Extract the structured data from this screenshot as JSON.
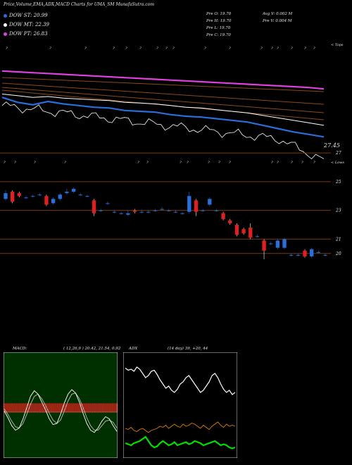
{
  "header": {
    "title": "Price,Volume,EMA,ADX,MACD Charts for UMA_SM MunafaSutra.com"
  },
  "legend": [
    {
      "label": "DOW ST: 20.99",
      "color": "#2a6edc"
    },
    {
      "label": "DOW MT: 22.39",
      "color": "#ffffff"
    },
    {
      "label": "DOW PT: 26.83",
      "color": "#e040e0"
    }
  ],
  "ohlc": {
    "open": "Pre  O: 19.70",
    "high": "Pre  H: 19.70",
    "low": "Pre  L: 19.70",
    "close": "Pre  C: 19.70",
    "avg_volume": "Avg V: 0.002  M",
    "prev_volume": "Pre  V: 0.004  M"
  },
  "colors": {
    "bull": "#2a6edc",
    "bear": "#e02020",
    "ema_short": "#2a6edc",
    "ema_mid": "#ffffff",
    "ema_long": "#e040e0",
    "brown": "#8a4a1a",
    "grid": "#7a3a10",
    "macd_hist": "#ff2020",
    "adx_white": "#ffffff",
    "adx_green": "#00e000",
    "adx_orange": "#e08000"
  },
  "chart_data": [
    {
      "type": "line",
      "name": "ema-panel",
      "ema_short_value": "20.99",
      "ema_mid_value": "22.39",
      "ema_long_value": "26.83",
      "last_price_label": "27.45",
      "right_label": "< Tops",
      "series": [
        {
          "name": "DOW PT",
          "values": [
            29.0,
            28.9,
            28.8,
            28.7,
            28.6,
            28.5,
            28.4,
            28.3,
            28.2,
            28.1,
            28.0,
            27.9,
            27.8,
            27.7,
            27.6,
            27.5,
            27.4,
            27.3,
            27.2,
            27.1,
            27.0,
            26.83
          ]
        },
        {
          "name": "DOW MT",
          "values": [
            26.2,
            26.0,
            25.8,
            25.9,
            25.7,
            25.6,
            25.5,
            25.4,
            25.2,
            25.1,
            25.0,
            24.8,
            24.6,
            24.5,
            24.3,
            24.1,
            23.9,
            23.6,
            23.3,
            23.0,
            22.7,
            22.39
          ]
        },
        {
          "name": "DOW ST",
          "values": [
            25.8,
            25.2,
            24.9,
            25.3,
            25.0,
            24.8,
            24.6,
            24.5,
            24.2,
            24.1,
            24.0,
            23.7,
            23.5,
            23.4,
            23.2,
            23.0,
            22.8,
            22.4,
            22.0,
            21.6,
            21.3,
            20.99
          ]
        }
      ]
    },
    {
      "type": "candlestick",
      "name": "price-panel",
      "right_label": "< Lows",
      "y_ticks": [
        "27",
        "25",
        "23",
        "21",
        "20"
      ],
      "ylim": [
        19.5,
        27.2
      ],
      "candles": [
        {
          "o": 23.8,
          "c": 24.2,
          "h": 24.4,
          "l": 23.7
        },
        {
          "o": 24.3,
          "c": 23.6,
          "h": 24.4,
          "l": 23.5
        },
        {
          "o": 24.2,
          "c": 24.0,
          "h": 24.3,
          "l": 23.9
        },
        {
          "o": 23.9,
          "c": 23.9,
          "h": 24.0,
          "l": 23.8
        },
        {
          "o": 24.0,
          "c": 24.0,
          "h": 24.1,
          "l": 23.9
        },
        {
          "o": 24.1,
          "c": 24.1,
          "h": 24.2,
          "l": 24.0
        },
        {
          "o": 24.0,
          "c": 23.4,
          "h": 24.1,
          "l": 23.3
        },
        {
          "o": 23.5,
          "c": 23.8,
          "h": 23.9,
          "l": 23.4
        },
        {
          "o": 23.8,
          "c": 24.1,
          "h": 24.2,
          "l": 23.7
        },
        {
          "o": 24.2,
          "c": 24.3,
          "h": 24.5,
          "l": 24.1
        },
        {
          "o": 24.3,
          "c": 24.5,
          "h": 24.6,
          "l": 24.2
        },
        {
          "o": 24.1,
          "c": 24.1,
          "h": 24.2,
          "l": 24.0
        },
        {
          "o": 24.0,
          "c": 24.0,
          "h": 24.1,
          "l": 23.9
        },
        {
          "o": 23.7,
          "c": 22.8,
          "h": 23.8,
          "l": 22.6
        },
        {
          "o": 23.0,
          "c": 23.0,
          "h": 23.1,
          "l": 22.9
        },
        {
          "o": 23.5,
          "c": 23.5,
          "h": 23.6,
          "l": 23.4
        },
        {
          "o": 22.9,
          "c": 22.9,
          "h": 23.0,
          "l": 22.8
        },
        {
          "o": 22.8,
          "c": 22.8,
          "h": 22.9,
          "l": 22.7
        },
        {
          "o": 22.7,
          "c": 22.8,
          "h": 23.0,
          "l": 22.6
        },
        {
          "o": 23.0,
          "c": 22.9,
          "h": 23.1,
          "l": 22.8
        },
        {
          "o": 22.9,
          "c": 22.9,
          "h": 23.0,
          "l": 22.8
        },
        {
          "o": 22.9,
          "c": 22.9,
          "h": 23.0,
          "l": 22.8
        },
        {
          "o": 23.0,
          "c": 23.0,
          "h": 23.1,
          "l": 22.9
        },
        {
          "o": 23.1,
          "c": 23.1,
          "h": 23.2,
          "l": 23.0
        },
        {
          "o": 23.0,
          "c": 23.0,
          "h": 23.1,
          "l": 22.9
        },
        {
          "o": 22.9,
          "c": 22.9,
          "h": 23.0,
          "l": 22.8
        },
        {
          "o": 22.8,
          "c": 22.8,
          "h": 22.9,
          "l": 22.7
        },
        {
          "o": 22.9,
          "c": 24.0,
          "h": 24.3,
          "l": 22.8
        },
        {
          "o": 23.7,
          "c": 22.9,
          "h": 23.8,
          "l": 22.6
        },
        {
          "o": 23.0,
          "c": 23.0,
          "h": 23.1,
          "l": 22.9
        },
        {
          "o": 23.4,
          "c": 23.8,
          "h": 23.9,
          "l": 23.3
        },
        {
          "o": 23.0,
          "c": 23.0,
          "h": 23.1,
          "l": 22.9
        },
        {
          "o": 22.8,
          "c": 22.4,
          "h": 22.9,
          "l": 22.3
        },
        {
          "o": 22.3,
          "c": 22.1,
          "h": 22.4,
          "l": 22.0
        },
        {
          "o": 22.0,
          "c": 21.3,
          "h": 22.1,
          "l": 21.2
        },
        {
          "o": 21.7,
          "c": 21.4,
          "h": 21.8,
          "l": 21.3
        },
        {
          "o": 21.8,
          "c": 21.1,
          "h": 22.1,
          "l": 21.0
        },
        {
          "o": 21.2,
          "c": 21.2,
          "h": 21.3,
          "l": 21.1
        },
        {
          "o": 20.9,
          "c": 20.2,
          "h": 21.0,
          "l": 19.6
        },
        {
          "o": 20.7,
          "c": 20.7,
          "h": 20.8,
          "l": 20.6
        },
        {
          "o": 20.4,
          "c": 20.9,
          "h": 21.0,
          "l": 20.3
        },
        {
          "o": 20.4,
          "c": 21.0,
          "h": 21.1,
          "l": 20.3
        },
        {
          "o": 19.9,
          "c": 19.9,
          "h": 20.0,
          "l": 19.8
        },
        {
          "o": 19.9,
          "c": 19.9,
          "h": 20.0,
          "l": 19.8
        },
        {
          "o": 20.2,
          "c": 19.8,
          "h": 20.3,
          "l": 19.7
        },
        {
          "o": 19.8,
          "c": 20.3,
          "h": 20.4,
          "l": 19.7
        },
        {
          "o": 20.1,
          "c": 20.1,
          "h": 20.2,
          "l": 20.0
        },
        {
          "o": 19.9,
          "c": 19.9,
          "h": 20.0,
          "l": 19.8
        }
      ]
    },
    {
      "type": "bar",
      "name": "macd-panel",
      "title": "MACD:",
      "params": "( 12,26,9 ) 20.42, 21.54,  0.92",
      "histogram": [
        0.9,
        0.9,
        0.9,
        0.9,
        0.9,
        0.9,
        0.9,
        0.9,
        0.9,
        0.9,
        0.9,
        0.9,
        0.9,
        0.9,
        0.9,
        0.9,
        0.9,
        0.9,
        0.9,
        0.9,
        0.9,
        0.9,
        0.9,
        0.9,
        0.9,
        0.9,
        0.9,
        0.9,
        0.9,
        0.9,
        0.9,
        0.9,
        0.9,
        0.9,
        0.9,
        0.9,
        0.9,
        0.9,
        0.9,
        0.9,
        0.9,
        0.9,
        0.9,
        0.9,
        0.9,
        0.9,
        0.9,
        0.9,
        0.9,
        0.9,
        0.9,
        0.9,
        0.9,
        0.9,
        0.9,
        0.9,
        0.9,
        0.9,
        0.9,
        0.9,
        0.9,
        0.9,
        0.9,
        0.9,
        0.9,
        0.9,
        0.9,
        0.9,
        0.9,
        0.9,
        0.9,
        0.9,
        0.9,
        0.9,
        0.9,
        0.9,
        0.9,
        0.9,
        0.9,
        0.9
      ],
      "macd_line": [
        0.1,
        -0.5,
        -1.2,
        -1.6,
        -1.4,
        -0.6,
        0.4,
        1.4,
        1.9,
        1.6,
        0.9,
        0.2,
        -0.6,
        -1.1,
        -1.0,
        -0.2,
        0.8,
        1.6,
        2.0,
        1.7,
        0.9,
        -0.1,
        -1.0,
        -1.6,
        -1.8,
        -1.4,
        -0.8,
        -0.4,
        -0.6,
        -1.2,
        -1.7
      ],
      "signal_line": [
        0.3,
        -0.2,
        -0.8,
        -1.3,
        -1.4,
        -1.0,
        -0.2,
        0.7,
        1.4,
        1.6,
        1.2,
        0.6,
        -0.1,
        -0.7,
        -1.0,
        -0.7,
        0.1,
        1.0,
        1.6,
        1.7,
        1.2,
        0.4,
        -0.5,
        -1.2,
        -1.6,
        -1.6,
        -1.2,
        -0.8,
        -0.7,
        -0.9,
        -1.4
      ]
    },
    {
      "type": "line",
      "name": "adx-panel",
      "title": "ADX",
      "params": "(14  day) 39,  +20,  44",
      "series": [
        {
          "name": "white",
          "values": [
            15,
            17,
            16,
            18,
            14,
            16,
            20,
            24,
            22,
            18,
            17,
            21,
            26,
            30,
            34,
            32,
            36,
            38,
            35,
            30,
            28,
            24,
            22,
            26,
            30,
            34,
            38,
            36,
            32,
            28,
            22,
            20,
            24,
            30,
            35,
            38,
            36,
            40,
            38
          ]
        },
        {
          "name": "orange",
          "values": [
            72,
            73,
            71,
            74,
            75,
            73,
            72,
            74,
            76,
            74,
            73,
            72,
            70,
            71,
            69,
            72,
            70,
            68,
            70,
            71,
            68,
            70,
            69,
            67,
            68,
            70,
            72,
            69,
            71,
            73,
            70,
            68,
            66,
            69,
            71,
            68,
            70,
            69,
            70
          ]
        },
        {
          "name": "green",
          "values": [
            86,
            87,
            88,
            86,
            85,
            84,
            82,
            80,
            84,
            88,
            90,
            89,
            86,
            84,
            86,
            88,
            87,
            85,
            88,
            87,
            86,
            85,
            87,
            86,
            84,
            85,
            86,
            88,
            87,
            86,
            85,
            84,
            86,
            88,
            87,
            88,
            90,
            91,
            90
          ]
        }
      ]
    }
  ]
}
